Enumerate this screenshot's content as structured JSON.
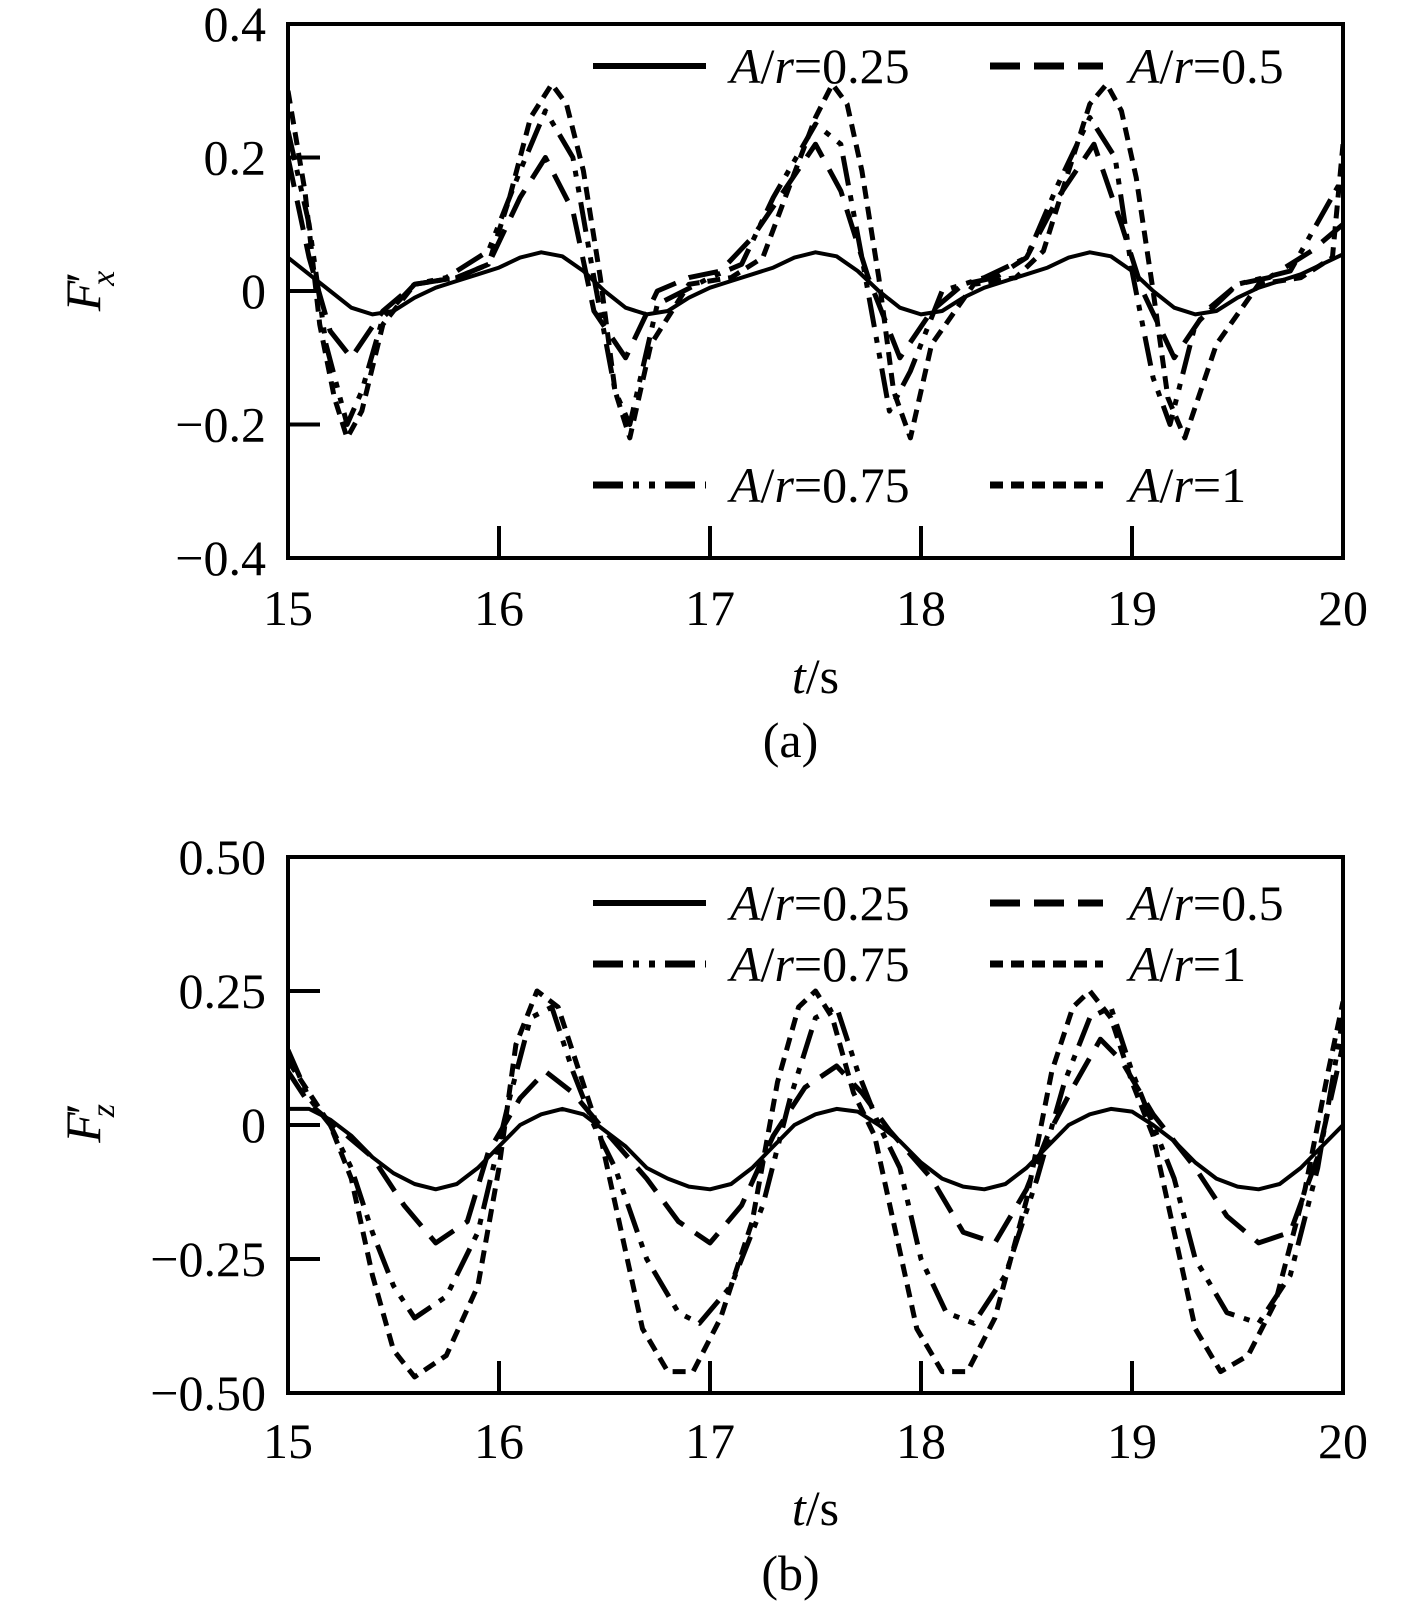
{
  "chart_data": [
    {
      "type": "line",
      "panel_label": "(a)",
      "ylabel": {
        "main": "F",
        "prime": "′",
        "sub": "x"
      },
      "xlabel": {
        "var": "t",
        "unit": "/s"
      },
      "xlim": [
        15,
        20
      ],
      "ylim": [
        -0.4,
        0.4
      ],
      "x_ticks": [
        "15",
        "16",
        "17",
        "18",
        "19",
        "20"
      ],
      "y_ticks": [
        {
          "v": 0.4,
          "label": "0.4"
        },
        {
          "v": 0.2,
          "label": "0.2"
        },
        {
          "v": 0,
          "label": "0"
        },
        {
          "v": -0.2,
          "label": "−0.2"
        },
        {
          "v": -0.4,
          "label": "−0.4"
        }
      ],
      "legend": {
        "top_row": [
          {
            "prefix": "A",
            "mid": "/",
            "var": "r",
            "suffix": "=0.25",
            "style": "solid"
          },
          {
            "prefix": "A",
            "mid": "/",
            "var": "r",
            "suffix": "=0.5",
            "style": "dash"
          }
        ],
        "bottom_row": [
          {
            "prefix": "A",
            "mid": "/",
            "var": "r",
            "suffix": "=0.75",
            "style": "dashdot"
          },
          {
            "prefix": "A",
            "mid": "/",
            "var": "r",
            "suffix": "=1",
            "style": "dot"
          }
        ]
      },
      "series": [
        {
          "name": "A/r=0.25",
          "style": "solid",
          "x": [
            15.0,
            15.1,
            15.2,
            15.3,
            15.4,
            15.5,
            15.6,
            15.7,
            15.8,
            15.9,
            16.0,
            16.1,
            16.2,
            16.3,
            16.4,
            16.5,
            16.6,
            16.7,
            16.8,
            16.9,
            17.0,
            17.1,
            17.2,
            17.3,
            17.4,
            17.5,
            17.6,
            17.7,
            17.8,
            17.9,
            18.0,
            18.1,
            18.2,
            18.3,
            18.4,
            18.5,
            18.6,
            18.7,
            18.8,
            18.9,
            19.0,
            19.1,
            19.2,
            19.3,
            19.4,
            19.5,
            19.6,
            19.7,
            19.8,
            19.9,
            20.0
          ],
          "y": [
            0.05,
            0.025,
            0.0,
            -0.025,
            -0.035,
            -0.03,
            -0.01,
            0.005,
            0.015,
            0.025,
            0.035,
            0.05,
            0.058,
            0.052,
            0.03,
            0.0,
            -0.025,
            -0.035,
            -0.03,
            -0.01,
            0.005,
            0.015,
            0.025,
            0.035,
            0.05,
            0.058,
            0.052,
            0.03,
            0.0,
            -0.025,
            -0.035,
            -0.03,
            -0.01,
            0.005,
            0.015,
            0.025,
            0.035,
            0.05,
            0.058,
            0.052,
            0.03,
            0.0,
            -0.025,
            -0.035,
            -0.03,
            -0.01,
            0.005,
            0.015,
            0.025,
            0.04,
            0.055
          ]
        },
        {
          "name": "A/r=0.5",
          "style": "dash",
          "x": [
            15.0,
            15.1,
            15.2,
            15.3,
            15.45,
            15.6,
            15.8,
            15.95,
            16.1,
            16.22,
            16.35,
            16.45,
            16.6,
            16.75,
            16.9,
            17.05,
            17.2,
            17.35,
            17.5,
            17.62,
            17.75,
            17.9,
            18.05,
            18.2,
            18.35,
            18.5,
            18.65,
            18.82,
            18.95,
            19.05,
            19.2,
            19.35,
            19.5,
            19.65,
            19.85,
            20.0
          ],
          "y": [
            0.2,
            0.05,
            -0.06,
            -0.1,
            -0.03,
            0.01,
            0.02,
            0.04,
            0.14,
            0.2,
            0.12,
            -0.03,
            -0.1,
            0.0,
            0.02,
            0.03,
            0.08,
            0.15,
            0.22,
            0.15,
            0.02,
            -0.1,
            -0.03,
            0.01,
            0.02,
            0.05,
            0.14,
            0.22,
            0.1,
            0.0,
            -0.1,
            -0.03,
            0.01,
            0.02,
            0.06,
            0.1
          ]
        },
        {
          "name": "A/r=0.75",
          "style": "dashdot",
          "x": [
            15.0,
            15.1,
            15.18,
            15.28,
            15.35,
            15.45,
            15.6,
            15.75,
            15.95,
            16.1,
            16.22,
            16.35,
            16.45,
            16.55,
            16.62,
            16.75,
            17.0,
            17.15,
            17.3,
            17.5,
            17.62,
            17.72,
            17.85,
            17.95,
            18.1,
            18.3,
            18.5,
            18.65,
            18.8,
            18.92,
            19.0,
            19.1,
            19.18,
            19.3,
            19.5,
            19.75,
            20.0
          ],
          "y": [
            0.24,
            0.1,
            -0.08,
            -0.2,
            -0.15,
            -0.04,
            0.01,
            0.02,
            0.06,
            0.18,
            0.27,
            0.2,
            0.02,
            -0.15,
            -0.2,
            -0.02,
            0.02,
            0.04,
            0.14,
            0.25,
            0.22,
            0.05,
            -0.18,
            -0.12,
            0.0,
            0.02,
            0.05,
            0.16,
            0.26,
            0.2,
            0.03,
            -0.13,
            -0.2,
            -0.05,
            0.01,
            0.03,
            0.17
          ]
        },
        {
          "name": "A/r=1",
          "style": "dot",
          "x": [
            15.0,
            15.08,
            15.15,
            15.22,
            15.28,
            15.35,
            15.45,
            15.6,
            15.8,
            15.95,
            16.05,
            16.15,
            16.25,
            16.32,
            16.4,
            16.48,
            16.55,
            16.62,
            16.72,
            16.9,
            17.1,
            17.25,
            17.38,
            17.5,
            17.58,
            17.65,
            17.72,
            17.8,
            17.87,
            17.95,
            18.05,
            18.25,
            18.45,
            18.58,
            18.7,
            18.8,
            18.88,
            18.95,
            19.02,
            19.1,
            19.17,
            19.25,
            19.4,
            19.6,
            19.8,
            19.95,
            20.0
          ],
          "y": [
            0.3,
            0.15,
            -0.05,
            -0.16,
            -0.22,
            -0.18,
            -0.05,
            0.01,
            0.02,
            0.04,
            0.14,
            0.26,
            0.31,
            0.28,
            0.18,
            0.02,
            -0.15,
            -0.22,
            -0.08,
            0.01,
            0.02,
            0.05,
            0.16,
            0.26,
            0.31,
            0.28,
            0.18,
            0.02,
            -0.15,
            -0.22,
            -0.08,
            0.01,
            0.02,
            0.06,
            0.18,
            0.28,
            0.31,
            0.27,
            0.17,
            0.0,
            -0.16,
            -0.22,
            -0.08,
            0.01,
            0.02,
            0.05,
            0.22
          ]
        }
      ]
    },
    {
      "type": "line",
      "panel_label": "(b)",
      "ylabel": {
        "main": "F",
        "prime": "′",
        "sub": "z"
      },
      "xlabel": {
        "var": "t",
        "unit": "/s"
      },
      "xlim": [
        15,
        20
      ],
      "ylim": [
        -0.5,
        0.5
      ],
      "x_ticks": [
        "15",
        "16",
        "17",
        "18",
        "19",
        "20"
      ],
      "y_ticks": [
        {
          "v": 0.5,
          "label": "0.50"
        },
        {
          "v": 0.25,
          "label": "0.25"
        },
        {
          "v": 0,
          "label": "0"
        },
        {
          "v": -0.25,
          "label": "−0.25"
        },
        {
          "v": -0.5,
          "label": "−0.50"
        }
      ],
      "legend": {
        "top_row": [
          {
            "prefix": "A",
            "mid": "/",
            "var": "r",
            "suffix": "=0.25",
            "style": "solid"
          },
          {
            "prefix": "A",
            "mid": "/",
            "var": "r",
            "suffix": "=0.5",
            "style": "dash"
          }
        ],
        "bottom_row": [
          {
            "prefix": "A",
            "mid": "/",
            "var": "r",
            "suffix": "=0.75",
            "style": "dashdot"
          },
          {
            "prefix": "A",
            "mid": "/",
            "var": "r",
            "suffix": "=1",
            "style": "dot"
          }
        ]
      },
      "series": [
        {
          "name": "A/r=0.25",
          "style": "solid",
          "x": [
            15.0,
            15.1,
            15.2,
            15.3,
            15.4,
            15.5,
            15.6,
            15.7,
            15.8,
            15.9,
            16.0,
            16.1,
            16.2,
            16.3,
            16.4,
            16.5,
            16.6,
            16.7,
            16.8,
            16.9,
            17.0,
            17.1,
            17.2,
            17.3,
            17.4,
            17.5,
            17.6,
            17.7,
            17.8,
            17.9,
            18.0,
            18.1,
            18.2,
            18.3,
            18.4,
            18.5,
            18.6,
            18.7,
            18.8,
            18.9,
            19.0,
            19.1,
            19.2,
            19.3,
            19.4,
            19.5,
            19.6,
            19.7,
            19.8,
            19.9,
            20.0
          ],
          "y": [
            0.03,
            0.03,
            0.01,
            -0.02,
            -0.06,
            -0.09,
            -0.11,
            -0.12,
            -0.11,
            -0.08,
            -0.04,
            0.0,
            0.02,
            0.03,
            0.02,
            -0.01,
            -0.04,
            -0.08,
            -0.1,
            -0.115,
            -0.12,
            -0.11,
            -0.08,
            -0.04,
            0.0,
            0.02,
            0.03,
            0.025,
            0.0,
            -0.03,
            -0.07,
            -0.1,
            -0.115,
            -0.12,
            -0.11,
            -0.08,
            -0.04,
            0.0,
            0.02,
            0.03,
            0.025,
            0.0,
            -0.03,
            -0.07,
            -0.1,
            -0.115,
            -0.12,
            -0.11,
            -0.08,
            -0.04,
            0.0
          ]
        },
        {
          "name": "A/r=0.5",
          "style": "dash",
          "x": [
            15.0,
            15.1,
            15.22,
            15.4,
            15.55,
            15.7,
            15.85,
            15.95,
            16.1,
            16.22,
            16.35,
            16.5,
            16.7,
            16.85,
            17.0,
            17.15,
            17.3,
            17.45,
            17.6,
            17.72,
            17.85,
            18.05,
            18.2,
            18.35,
            18.5,
            18.6,
            18.72,
            18.85,
            18.95,
            19.1,
            19.3,
            19.45,
            19.6,
            19.75,
            19.88,
            20.0
          ],
          "y": [
            0.1,
            0.04,
            0.0,
            -0.06,
            -0.15,
            -0.22,
            -0.18,
            -0.05,
            0.05,
            0.1,
            0.06,
            -0.01,
            -0.1,
            -0.18,
            -0.22,
            -0.15,
            -0.02,
            0.07,
            0.11,
            0.06,
            -0.01,
            -0.1,
            -0.2,
            -0.22,
            -0.12,
            -0.02,
            0.07,
            0.16,
            0.12,
            0.02,
            -0.08,
            -0.17,
            -0.22,
            -0.2,
            -0.06,
            0.15
          ]
        },
        {
          "name": "A/r=0.75",
          "style": "dashdot",
          "x": [
            15.0,
            15.1,
            15.2,
            15.3,
            15.4,
            15.5,
            15.6,
            15.75,
            15.9,
            16.05,
            16.15,
            16.25,
            16.35,
            16.45,
            16.55,
            16.7,
            16.85,
            16.95,
            17.1,
            17.25,
            17.38,
            17.5,
            17.6,
            17.7,
            17.8,
            17.9,
            18.0,
            18.12,
            18.25,
            18.4,
            18.55,
            18.68,
            18.8,
            18.9,
            19.0,
            19.1,
            19.2,
            19.3,
            19.45,
            19.6,
            19.75,
            19.88,
            20.0
          ],
          "y": [
            0.14,
            0.05,
            0.0,
            -0.08,
            -0.2,
            -0.3,
            -0.36,
            -0.32,
            -0.2,
            0.05,
            0.2,
            0.22,
            0.1,
            0.0,
            -0.08,
            -0.25,
            -0.35,
            -0.37,
            -0.3,
            -0.15,
            0.05,
            0.2,
            0.22,
            0.1,
            0.0,
            -0.08,
            -0.25,
            -0.35,
            -0.37,
            -0.28,
            -0.1,
            0.08,
            0.2,
            0.22,
            0.1,
            0.0,
            -0.1,
            -0.25,
            -0.35,
            -0.37,
            -0.28,
            -0.08,
            0.2
          ]
        },
        {
          "name": "A/r=1",
          "style": "dot",
          "x": [
            15.0,
            15.1,
            15.2,
            15.3,
            15.4,
            15.5,
            15.6,
            15.75,
            15.9,
            16.0,
            16.08,
            16.18,
            16.28,
            16.38,
            16.48,
            16.58,
            16.68,
            16.8,
            16.92,
            17.05,
            17.2,
            17.32,
            17.42,
            17.5,
            17.58,
            17.68,
            17.78,
            17.88,
            17.98,
            18.1,
            18.22,
            18.35,
            18.5,
            18.62,
            18.72,
            18.8,
            18.9,
            19.0,
            19.1,
            19.2,
            19.3,
            19.42,
            19.55,
            19.68,
            19.82,
            19.93,
            20.0
          ],
          "y": [
            0.12,
            0.06,
            0.0,
            -0.1,
            -0.28,
            -0.42,
            -0.47,
            -0.43,
            -0.3,
            -0.08,
            0.15,
            0.25,
            0.22,
            0.1,
            -0.02,
            -0.2,
            -0.38,
            -0.46,
            -0.46,
            -0.36,
            -0.18,
            0.08,
            0.22,
            0.25,
            0.2,
            0.06,
            -0.02,
            -0.2,
            -0.38,
            -0.46,
            -0.46,
            -0.36,
            -0.14,
            0.1,
            0.22,
            0.25,
            0.2,
            0.08,
            -0.02,
            -0.2,
            -0.38,
            -0.46,
            -0.43,
            -0.33,
            -0.12,
            0.1,
            0.23
          ]
        }
      ]
    }
  ]
}
